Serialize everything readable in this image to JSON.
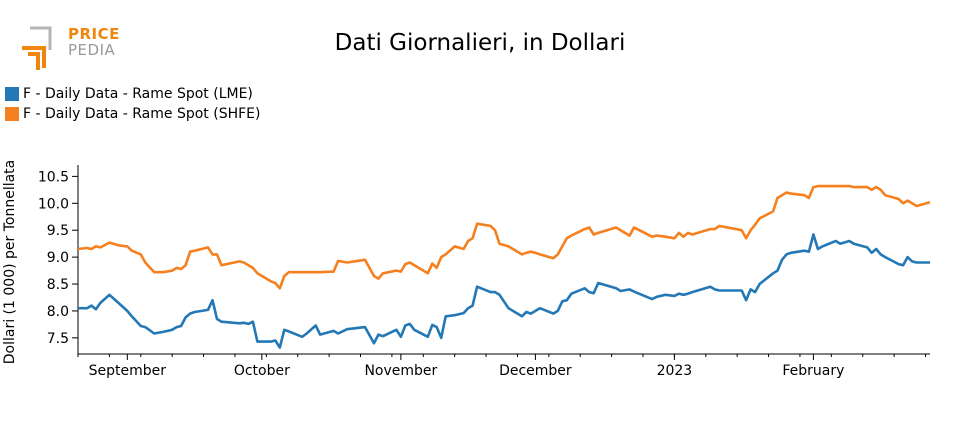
{
  "logo": {
    "word_top": "PRICE",
    "word_bottom": "PEDIA"
  },
  "colors": {
    "lme": "#2378b5",
    "shfe": "#f5801f",
    "logo_orange": "#f0860f",
    "logo_gray": "#9a9a9a"
  },
  "chart_data": {
    "type": "line",
    "title": "Dati Giornalieri, in Dollari",
    "ylabel": "Dollari (1 000) per Tonnellata",
    "xlabel": "",
    "x_ticks": [
      "September",
      "October",
      "November",
      "December",
      "2023",
      "February"
    ],
    "x_tick_dates": [
      "2022-09-01",
      "2022-10-01",
      "2022-11-01",
      "2022-12-01",
      "2023-01-01",
      "2023-02-01"
    ],
    "x_range": [
      "2022-08-21",
      "2023-02-27"
    ],
    "ylim": [
      7.2,
      10.6
    ],
    "y_ticks": [
      7.5,
      8.0,
      8.5,
      9.0,
      9.5,
      10.0,
      10.5
    ],
    "y_tick_labels": [
      "7.5",
      "8.0",
      "8.5",
      "9.0",
      "9.5",
      "10.0",
      "10.5"
    ],
    "grid": false,
    "legend": "top-left",
    "series": [
      {
        "name": "F - Daily Data - Rame Spot (LME)",
        "color": "#2378b5",
        "points": [
          [
            "2022-08-21",
            8.05
          ],
          [
            "2022-08-23",
            8.05
          ],
          [
            "2022-08-24",
            8.1
          ],
          [
            "2022-08-25",
            8.03
          ],
          [
            "2022-08-26",
            8.15
          ],
          [
            "2022-08-28",
            8.3
          ],
          [
            "2022-08-30",
            8.15
          ],
          [
            "2022-09-01",
            8.0
          ],
          [
            "2022-09-02",
            7.9
          ],
          [
            "2022-09-04",
            7.72
          ],
          [
            "2022-09-05",
            7.7
          ],
          [
            "2022-09-07",
            7.58
          ],
          [
            "2022-09-09",
            7.61
          ],
          [
            "2022-09-11",
            7.65
          ],
          [
            "2022-09-12",
            7.7
          ],
          [
            "2022-09-13",
            7.72
          ],
          [
            "2022-09-14",
            7.88
          ],
          [
            "2022-09-15",
            7.95
          ],
          [
            "2022-09-16",
            7.98
          ],
          [
            "2022-09-19",
            8.02
          ],
          [
            "2022-09-20",
            8.2
          ],
          [
            "2022-09-21",
            7.85
          ],
          [
            "2022-09-22",
            7.8
          ],
          [
            "2022-09-26",
            7.77
          ],
          [
            "2022-09-27",
            7.78
          ],
          [
            "2022-09-28",
            7.76
          ],
          [
            "2022-09-29",
            7.8
          ],
          [
            "2022-09-30",
            7.43
          ],
          [
            "2022-10-03",
            7.43
          ],
          [
            "2022-10-04",
            7.45
          ],
          [
            "2022-10-05",
            7.32
          ],
          [
            "2022-10-06",
            7.65
          ],
          [
            "2022-10-07",
            7.62
          ],
          [
            "2022-10-10",
            7.52
          ],
          [
            "2022-10-11",
            7.58
          ],
          [
            "2022-10-13",
            7.73
          ],
          [
            "2022-10-14",
            7.56
          ],
          [
            "2022-10-17",
            7.63
          ],
          [
            "2022-10-18",
            7.58
          ],
          [
            "2022-10-20",
            7.66
          ],
          [
            "2022-10-24",
            7.7
          ],
          [
            "2022-10-26",
            7.4
          ],
          [
            "2022-10-27",
            7.56
          ],
          [
            "2022-10-28",
            7.53
          ],
          [
            "2022-10-31",
            7.65
          ],
          [
            "2022-11-01",
            7.52
          ],
          [
            "2022-11-02",
            7.73
          ],
          [
            "2022-11-03",
            7.76
          ],
          [
            "2022-11-04",
            7.65
          ],
          [
            "2022-11-07",
            7.52
          ],
          [
            "2022-11-08",
            7.74
          ],
          [
            "2022-11-09",
            7.7
          ],
          [
            "2022-11-10",
            7.5
          ],
          [
            "2022-11-11",
            7.9
          ],
          [
            "2022-11-13",
            7.92
          ],
          [
            "2022-11-15",
            7.96
          ],
          [
            "2022-11-16",
            8.05
          ],
          [
            "2022-11-17",
            8.1
          ],
          [
            "2022-11-18",
            8.45
          ],
          [
            "2022-11-21",
            8.35
          ],
          [
            "2022-11-22",
            8.35
          ],
          [
            "2022-11-23",
            8.3
          ],
          [
            "2022-11-25",
            8.05
          ],
          [
            "2022-11-27",
            7.95
          ],
          [
            "2022-11-28",
            7.9
          ],
          [
            "2022-11-29",
            7.98
          ],
          [
            "2022-11-30",
            7.95
          ],
          [
            "2022-12-01",
            8.0
          ],
          [
            "2022-12-02",
            8.05
          ],
          [
            "2022-12-05",
            7.95
          ],
          [
            "2022-12-06",
            8.0
          ],
          [
            "2022-12-07",
            8.18
          ],
          [
            "2022-12-08",
            8.2
          ],
          [
            "2022-12-09",
            8.32
          ],
          [
            "2022-12-12",
            8.42
          ],
          [
            "2022-12-13",
            8.35
          ],
          [
            "2022-12-14",
            8.33
          ],
          [
            "2022-12-15",
            8.52
          ],
          [
            "2022-12-19",
            8.42
          ],
          [
            "2022-12-20",
            8.37
          ],
          [
            "2022-12-22",
            8.4
          ],
          [
            "2022-12-23",
            8.36
          ],
          [
            "2022-12-27",
            8.22
          ],
          [
            "2022-12-28",
            8.26
          ],
          [
            "2022-12-30",
            8.3
          ],
          [
            "2023-01-01",
            8.28
          ],
          [
            "2023-01-02",
            8.32
          ],
          [
            "2023-01-03",
            8.3
          ],
          [
            "2023-01-04",
            8.32
          ],
          [
            "2023-01-05",
            8.35
          ],
          [
            "2023-01-09",
            8.45
          ],
          [
            "2023-01-10",
            8.4
          ],
          [
            "2023-01-11",
            8.38
          ],
          [
            "2023-01-16",
            8.38
          ],
          [
            "2023-01-17",
            8.2
          ],
          [
            "2023-01-18",
            8.4
          ],
          [
            "2023-01-19",
            8.35
          ],
          [
            "2023-01-20",
            8.5
          ],
          [
            "2023-01-23",
            8.7
          ],
          [
            "2023-01-24",
            8.75
          ],
          [
            "2023-01-25",
            8.95
          ],
          [
            "2023-01-26",
            9.05
          ],
          [
            "2023-01-27",
            9.08
          ],
          [
            "2023-01-30",
            9.12
          ],
          [
            "2023-01-31",
            9.1
          ],
          [
            "2023-02-01",
            9.42
          ],
          [
            "2023-02-02",
            9.15
          ],
          [
            "2023-02-03",
            9.2
          ],
          [
            "2023-02-06",
            9.3
          ],
          [
            "2023-02-07",
            9.25
          ],
          [
            "2023-02-09",
            9.3
          ],
          [
            "2023-02-10",
            9.25
          ],
          [
            "2023-02-13",
            9.18
          ],
          [
            "2023-02-14",
            9.08
          ],
          [
            "2023-02-15",
            9.15
          ],
          [
            "2023-02-16",
            9.05
          ],
          [
            "2023-02-17",
            9.0
          ],
          [
            "2023-02-20",
            8.87
          ],
          [
            "2023-02-21",
            8.85
          ],
          [
            "2023-02-22",
            9.0
          ],
          [
            "2023-02-23",
            8.92
          ],
          [
            "2023-02-24",
            8.9
          ],
          [
            "2023-02-27",
            8.9
          ]
        ]
      },
      {
        "name": "F - Daily Data - Rame Spot (SHFE)",
        "color": "#f5801f",
        "points": [
          [
            "2022-08-21",
            9.15
          ],
          [
            "2022-08-23",
            9.17
          ],
          [
            "2022-08-24",
            9.15
          ],
          [
            "2022-08-25",
            9.2
          ],
          [
            "2022-08-26",
            9.18
          ],
          [
            "2022-08-28",
            9.27
          ],
          [
            "2022-08-30",
            9.22
          ],
          [
            "2022-09-01",
            9.2
          ],
          [
            "2022-09-02",
            9.12
          ],
          [
            "2022-09-04",
            9.05
          ],
          [
            "2022-09-05",
            8.9
          ],
          [
            "2022-09-07",
            8.72
          ],
          [
            "2022-09-09",
            8.72
          ],
          [
            "2022-09-11",
            8.75
          ],
          [
            "2022-09-12",
            8.8
          ],
          [
            "2022-09-13",
            8.78
          ],
          [
            "2022-09-14",
            8.85
          ],
          [
            "2022-09-15",
            9.1
          ],
          [
            "2022-09-16",
            9.12
          ],
          [
            "2022-09-19",
            9.18
          ],
          [
            "2022-09-20",
            9.05
          ],
          [
            "2022-09-21",
            9.05
          ],
          [
            "2022-09-22",
            8.85
          ],
          [
            "2022-09-26",
            8.92
          ],
          [
            "2022-09-27",
            8.9
          ],
          [
            "2022-09-28",
            8.85
          ],
          [
            "2022-09-29",
            8.8
          ],
          [
            "2022-09-30",
            8.7
          ],
          [
            "2022-10-03",
            8.55
          ],
          [
            "2022-10-04",
            8.52
          ],
          [
            "2022-10-05",
            8.42
          ],
          [
            "2022-10-06",
            8.65
          ],
          [
            "2022-10-07",
            8.72
          ],
          [
            "2022-10-10",
            8.72
          ],
          [
            "2022-10-11",
            8.72
          ],
          [
            "2022-10-13",
            8.72
          ],
          [
            "2022-10-14",
            8.72
          ],
          [
            "2022-10-17",
            8.73
          ],
          [
            "2022-10-18",
            8.93
          ],
          [
            "2022-10-20",
            8.9
          ],
          [
            "2022-10-24",
            8.95
          ],
          [
            "2022-10-26",
            8.65
          ],
          [
            "2022-10-27",
            8.6
          ],
          [
            "2022-10-28",
            8.7
          ],
          [
            "2022-10-31",
            8.75
          ],
          [
            "2022-11-01",
            8.73
          ],
          [
            "2022-11-02",
            8.87
          ],
          [
            "2022-11-03",
            8.9
          ],
          [
            "2022-11-04",
            8.85
          ],
          [
            "2022-11-07",
            8.7
          ],
          [
            "2022-11-08",
            8.88
          ],
          [
            "2022-11-09",
            8.8
          ],
          [
            "2022-11-10",
            9.0
          ],
          [
            "2022-11-11",
            9.05
          ],
          [
            "2022-11-13",
            9.2
          ],
          [
            "2022-11-15",
            9.15
          ],
          [
            "2022-11-16",
            9.3
          ],
          [
            "2022-11-17",
            9.35
          ],
          [
            "2022-11-18",
            9.62
          ],
          [
            "2022-11-21",
            9.58
          ],
          [
            "2022-11-22",
            9.5
          ],
          [
            "2022-11-23",
            9.25
          ],
          [
            "2022-11-25",
            9.2
          ],
          [
            "2022-11-27",
            9.1
          ],
          [
            "2022-11-28",
            9.05
          ],
          [
            "2022-11-29",
            9.08
          ],
          [
            "2022-11-30",
            9.1
          ],
          [
            "2022-12-01",
            9.08
          ],
          [
            "2022-12-02",
            9.05
          ],
          [
            "2022-12-05",
            8.98
          ],
          [
            "2022-12-06",
            9.05
          ],
          [
            "2022-12-07",
            9.2
          ],
          [
            "2022-12-08",
            9.35
          ],
          [
            "2022-12-09",
            9.4
          ],
          [
            "2022-12-12",
            9.52
          ],
          [
            "2022-12-13",
            9.55
          ],
          [
            "2022-12-14",
            9.42
          ],
          [
            "2022-12-15",
            9.45
          ],
          [
            "2022-12-19",
            9.55
          ],
          [
            "2022-12-20",
            9.5
          ],
          [
            "2022-12-22",
            9.4
          ],
          [
            "2022-12-23",
            9.55
          ],
          [
            "2022-12-27",
            9.38
          ],
          [
            "2022-12-28",
            9.4
          ],
          [
            "2022-12-30",
            9.38
          ],
          [
            "2023-01-01",
            9.35
          ],
          [
            "2023-01-02",
            9.45
          ],
          [
            "2023-01-03",
            9.38
          ],
          [
            "2023-01-04",
            9.45
          ],
          [
            "2023-01-05",
            9.42
          ],
          [
            "2023-01-09",
            9.52
          ],
          [
            "2023-01-10",
            9.52
          ],
          [
            "2023-01-11",
            9.58
          ],
          [
            "2023-01-16",
            9.5
          ],
          [
            "2023-01-17",
            9.35
          ],
          [
            "2023-01-18",
            9.5
          ],
          [
            "2023-01-19",
            9.6
          ],
          [
            "2023-01-20",
            9.72
          ],
          [
            "2023-01-23",
            9.85
          ],
          [
            "2023-01-24",
            10.1
          ],
          [
            "2023-01-25",
            10.15
          ],
          [
            "2023-01-26",
            10.2
          ],
          [
            "2023-01-27",
            10.18
          ],
          [
            "2023-01-30",
            10.15
          ],
          [
            "2023-01-31",
            10.1
          ],
          [
            "2023-02-01",
            10.3
          ],
          [
            "2023-02-02",
            10.32
          ],
          [
            "2023-02-03",
            10.32
          ],
          [
            "2023-02-06",
            10.32
          ],
          [
            "2023-02-07",
            10.32
          ],
          [
            "2023-02-09",
            10.32
          ],
          [
            "2023-02-10",
            10.3
          ],
          [
            "2023-02-13",
            10.3
          ],
          [
            "2023-02-14",
            10.25
          ],
          [
            "2023-02-15",
            10.3
          ],
          [
            "2023-02-16",
            10.25
          ],
          [
            "2023-02-17",
            10.15
          ],
          [
            "2023-02-20",
            10.08
          ],
          [
            "2023-02-21",
            10.0
          ],
          [
            "2023-02-22",
            10.05
          ],
          [
            "2023-02-23",
            10.0
          ],
          [
            "2023-02-24",
            9.95
          ],
          [
            "2023-02-27",
            10.02
          ]
        ]
      }
    ]
  }
}
